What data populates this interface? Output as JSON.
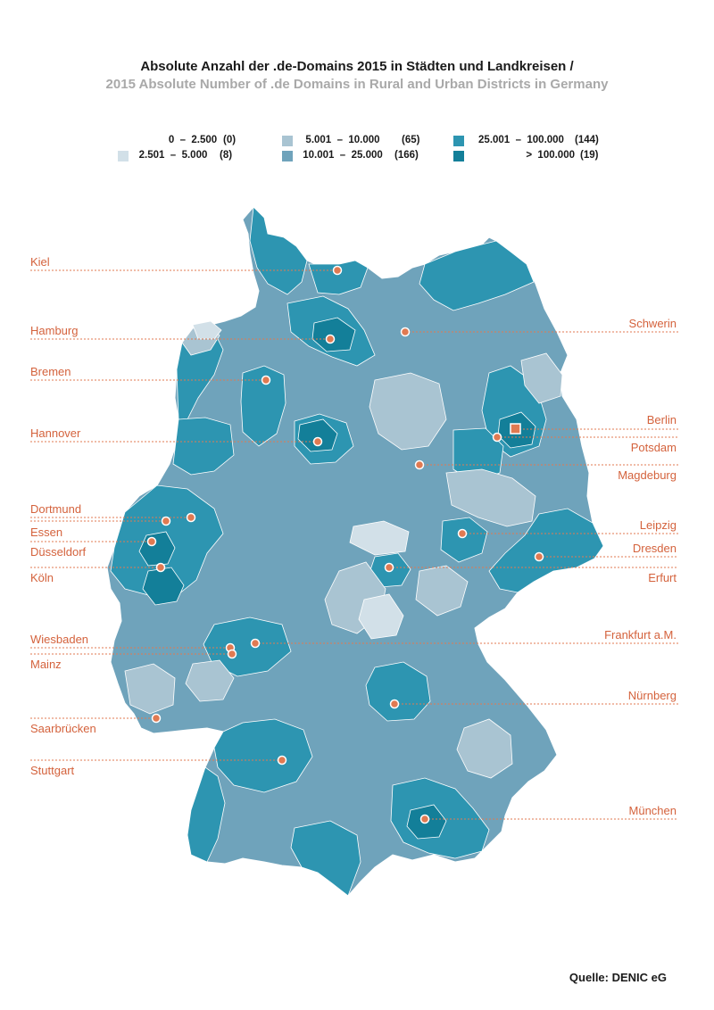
{
  "title": {
    "de": "Absolute Anzahl der .de-Domains 2015 in Städten und Landkreisen /",
    "en": "2015 Absolute Number of .de Domains in Rural and Urban Districts in Germany"
  },
  "legend": [
    {
      "range": "0  –  2.500",
      "count": "(0)",
      "color": "#ffffff"
    },
    {
      "range": "2.501  –  5.000",
      "count": "(8)",
      "color": "#d2e0e8"
    },
    {
      "range": "5.001  –  10.000",
      "count": "(65)",
      "color": "#a9c4d2"
    },
    {
      "range": "10.001  –  25.000",
      "count": "(166)",
      "color": "#6fa3bb"
    },
    {
      "range": "25.001  –  100.000",
      "count": "(144)",
      "color": "#2d95b1"
    },
    {
      "range": ">  100.000",
      "count": "(19)",
      "color": "#137f99"
    }
  ],
  "cities": {
    "kiel": "Kiel",
    "hamburg": "Hamburg",
    "bremen": "Bremen",
    "hannover": "Hannover",
    "dortmund": "Dortmund",
    "essen": "Essen",
    "duesseldorf": "Düsseldorf",
    "koeln": "Köln",
    "wiesbaden": "Wiesbaden",
    "mainz": "Mainz",
    "saarbruecken": "Saarbrücken",
    "stuttgart": "Stuttgart",
    "schwerin": "Schwerin",
    "berlin": "Berlin",
    "potsdam": "Potsdam",
    "magdeburg": "Magdeburg",
    "leipzig": "Leipzig",
    "dresden": "Dresden",
    "erfurt": "Erfurt",
    "frankfurt": "Frankfurt a.M.",
    "nuernberg": "Nürnberg",
    "muenchen": "München"
  },
  "colors": {
    "marker": "#e07a52",
    "label": "#d4623c",
    "line": "#e07a52"
  },
  "source": "Quelle: DENIC eG"
}
